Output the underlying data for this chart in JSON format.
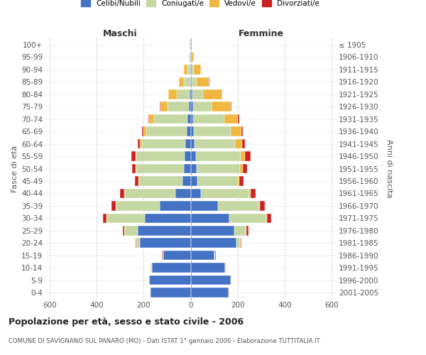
{
  "age_groups": [
    "0-4",
    "5-9",
    "10-14",
    "15-19",
    "20-24",
    "25-29",
    "30-34",
    "35-39",
    "40-44",
    "45-49",
    "50-54",
    "55-59",
    "60-64",
    "65-69",
    "70-74",
    "75-79",
    "80-84",
    "85-89",
    "90-94",
    "95-99",
    "100+"
  ],
  "birth_years": [
    "2001-2005",
    "1996-2000",
    "1991-1995",
    "1986-1990",
    "1981-1985",
    "1976-1980",
    "1971-1975",
    "1966-1970",
    "1961-1965",
    "1956-1960",
    "1951-1955",
    "1946-1950",
    "1941-1945",
    "1936-1940",
    "1931-1935",
    "1926-1930",
    "1921-1925",
    "1916-1920",
    "1911-1915",
    "1906-1910",
    "≤ 1905"
  ],
  "male": {
    "single": [
      170,
      175,
      165,
      115,
      215,
      225,
      195,
      130,
      65,
      35,
      30,
      25,
      22,
      18,
      15,
      8,
      5,
      2,
      2,
      1,
      2
    ],
    "married": [
      2,
      2,
      2,
      3,
      15,
      55,
      160,
      185,
      215,
      185,
      200,
      205,
      185,
      170,
      140,
      90,
      55,
      28,
      12,
      3,
      2
    ],
    "widowed": [
      1,
      1,
      2,
      2,
      2,
      2,
      3,
      3,
      3,
      3,
      4,
      5,
      8,
      12,
      20,
      30,
      35,
      20,
      15,
      5,
      2
    ],
    "divorced": [
      0,
      0,
      0,
      1,
      3,
      5,
      15,
      18,
      18,
      15,
      15,
      18,
      10,
      8,
      5,
      2,
      0,
      0,
      0,
      0,
      0
    ]
  },
  "female": {
    "single": [
      160,
      170,
      145,
      100,
      195,
      185,
      165,
      115,
      45,
      30,
      25,
      22,
      18,
      15,
      12,
      10,
      8,
      5,
      5,
      2,
      2
    ],
    "married": [
      2,
      2,
      2,
      3,
      15,
      50,
      155,
      175,
      205,
      170,
      185,
      190,
      170,
      155,
      130,
      80,
      45,
      22,
      10,
      3,
      2
    ],
    "widowed": [
      1,
      1,
      1,
      2,
      2,
      3,
      3,
      4,
      5,
      8,
      12,
      20,
      30,
      45,
      60,
      80,
      80,
      50,
      30,
      10,
      2
    ],
    "divorced": [
      0,
      0,
      0,
      1,
      4,
      8,
      18,
      22,
      22,
      18,
      18,
      22,
      12,
      8,
      5,
      4,
      2,
      2,
      0,
      0,
      0
    ]
  },
  "colors": {
    "single": "#4472c4",
    "married": "#c5d8a4",
    "widowed": "#f0b840",
    "divorced": "#cc2222"
  },
  "title": "Popolazione per età, sesso e stato civile - 2006",
  "subtitle": "COMUNE DI SAVIGNANO SUL PANARO (MO) - Dati ISTAT 1° gennaio 2006 - Elaborazione TUTTITALIA.IT",
  "xlabel_left": "Maschi",
  "xlabel_right": "Femmine",
  "ylabel_left": "Fasce di età",
  "ylabel_right": "Anni di nascita",
  "xlim": 620,
  "bg_color": "#ffffff",
  "grid_color": "#cccccc"
}
